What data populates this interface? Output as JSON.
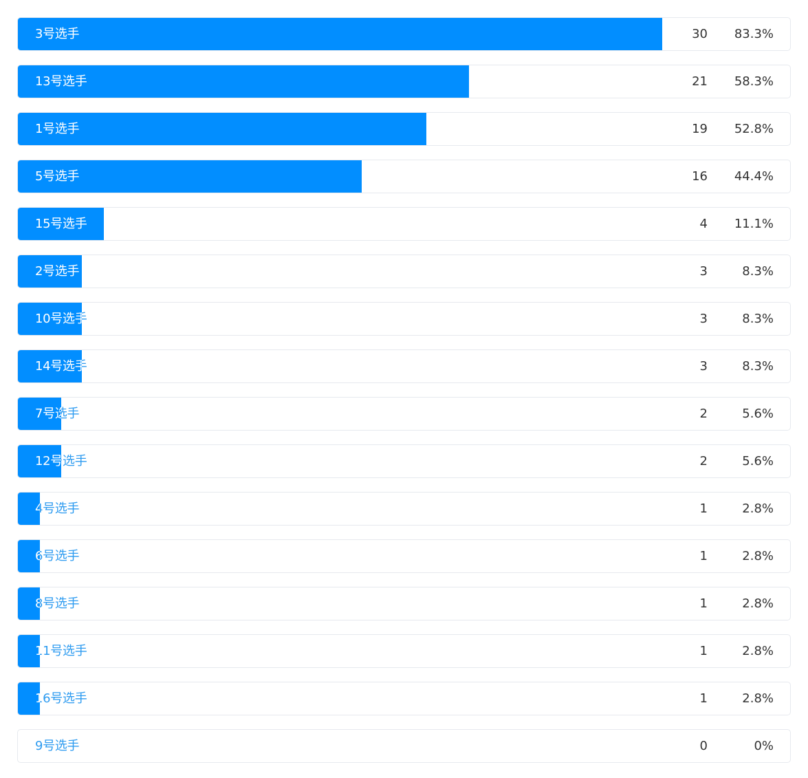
{
  "colors": {
    "bar": "#028eff",
    "label_on_bar": "#ffffff",
    "label_off_bar": "#2d9bf0",
    "value_text": "#333333",
    "row_border": "#e6e9ee"
  },
  "chart_data": {
    "type": "bar",
    "orientation": "horizontal",
    "title": "",
    "categories": [
      "3号选手",
      "13号选手",
      "1号选手",
      "5号选手",
      "15号选手",
      "2号选手",
      "10号选手",
      "14号选手",
      "7号选手",
      "12号选手",
      "4号选手",
      "6号选手",
      "8号选手",
      "11号选手",
      "16号选手",
      "9号选手"
    ],
    "values": [
      30,
      21,
      19,
      16,
      4,
      3,
      3,
      3,
      2,
      2,
      1,
      1,
      1,
      1,
      1,
      0
    ],
    "percent_labels": [
      "83.3%",
      "58.3%",
      "52.8%",
      "44.4%",
      "11.1%",
      "8.3%",
      "8.3%",
      "8.3%",
      "5.6%",
      "5.6%",
      "2.8%",
      "2.8%",
      "2.8%",
      "2.8%",
      "2.8%",
      "0%"
    ],
    "percent_values": [
      83.3,
      58.3,
      52.8,
      44.4,
      11.1,
      8.3,
      8.3,
      8.3,
      5.6,
      5.6,
      2.8,
      2.8,
      2.8,
      2.8,
      2.8,
      0
    ],
    "xlim": [
      0,
      100
    ],
    "grid": false,
    "legend": "none"
  }
}
